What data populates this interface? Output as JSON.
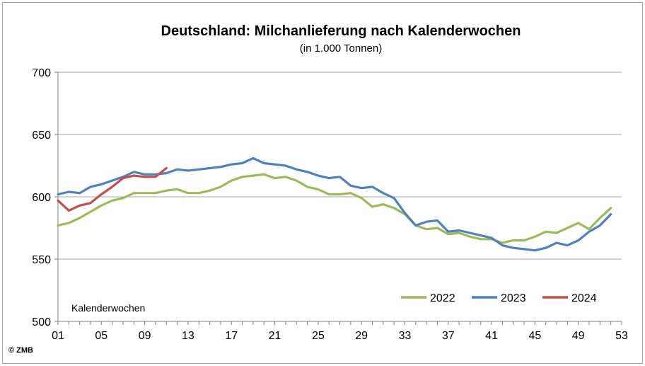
{
  "chart_data": {
    "type": "line",
    "title": "Deutschland: Milchanlieferung nach Kalenderwochen",
    "subtitle": "(in 1.000 Tonnen)",
    "annotation": "Kalenderwochen",
    "copyright": "© ZMB",
    "xlim": [
      1,
      53
    ],
    "ylim": [
      500,
      700
    ],
    "x_ticks": [
      "01",
      "05",
      "09",
      "13",
      "17",
      "21",
      "25",
      "29",
      "33",
      "37",
      "41",
      "45",
      "49",
      "53"
    ],
    "x_tick_values": [
      1,
      5,
      9,
      13,
      17,
      21,
      25,
      29,
      33,
      37,
      41,
      45,
      49,
      53
    ],
    "y_ticks": [
      "700",
      "650",
      "600",
      "550",
      "500"
    ],
    "y_tick_values": [
      700,
      650,
      600,
      550,
      500
    ],
    "grid": "horizontal",
    "legend_position": "bottom-right",
    "series": [
      {
        "name": "2022",
        "color": "#9bbb59",
        "values": [
          577,
          579,
          583,
          588,
          593,
          597,
          599,
          603,
          603,
          603,
          605,
          606,
          603,
          603,
          605,
          608,
          613,
          616,
          617,
          618,
          615,
          616,
          613,
          608,
          606,
          602,
          602,
          603,
          599,
          592,
          594,
          591,
          586,
          577,
          574,
          575,
          570,
          571,
          568,
          566,
          566,
          563,
          565,
          565,
          568,
          572,
          571,
          575,
          579,
          574,
          583,
          591
        ]
      },
      {
        "name": "2023",
        "color": "#4f81bd",
        "values": [
          602,
          604,
          603,
          608,
          610,
          613,
          616,
          620,
          618,
          618,
          619,
          622,
          621,
          622,
          623,
          624,
          626,
          627,
          631,
          627,
          626,
          625,
          622,
          620,
          617,
          615,
          616,
          609,
          607,
          608,
          603,
          599,
          587,
          577,
          580,
          581,
          572,
          573,
          571,
          569,
          567,
          561,
          559,
          558,
          557,
          559,
          563,
          561,
          565,
          572,
          577,
          586
        ]
      },
      {
        "name": "2024",
        "color": "#c0504d",
        "values": [
          597,
          589,
          593,
          595,
          602,
          608,
          615,
          617,
          616,
          616,
          623
        ]
      }
    ]
  }
}
